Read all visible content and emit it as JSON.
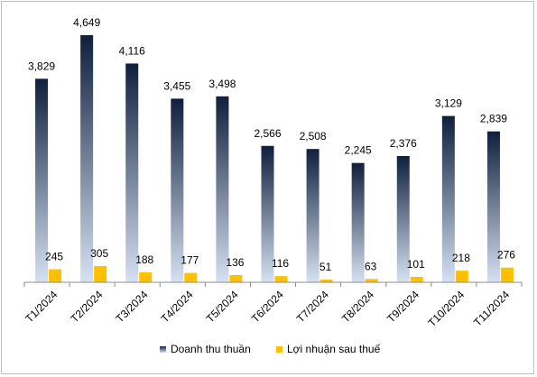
{
  "chart_data": {
    "type": "bar",
    "categories": [
      "T1/2024",
      "T2/2024",
      "T3/2024",
      "T4/2024",
      "T5/2024",
      "T6/2024",
      "T7/2024",
      "T8/2024",
      "T9/2024",
      "T10/2024",
      "T11/2024"
    ],
    "series": [
      {
        "name": "Doanh thu thuần",
        "values": [
          3829,
          4649,
          4116,
          3455,
          3498,
          2566,
          2508,
          2245,
          2376,
          3129,
          2839
        ],
        "labels": [
          "3,829",
          "4,649",
          "4,116",
          "3,455",
          "3,498",
          "2,566",
          "2,508",
          "2,245",
          "2,376",
          "3,129",
          "2,839"
        ],
        "color_top": "#0f1f3d",
        "color_bottom": "#d6e2f3"
      },
      {
        "name": "Lợi nhuận sau thuế",
        "values": [
          245,
          305,
          188,
          177,
          136,
          116,
          51,
          63,
          101,
          218,
          276
        ],
        "labels": [
          "245",
          "305",
          "188",
          "177",
          "136",
          "116",
          "51",
          "63",
          "101",
          "218",
          "276"
        ],
        "color": "#ffc000"
      }
    ],
    "ylim": [
      0,
      4700
    ],
    "grid": false,
    "legend_position": "bottom"
  }
}
